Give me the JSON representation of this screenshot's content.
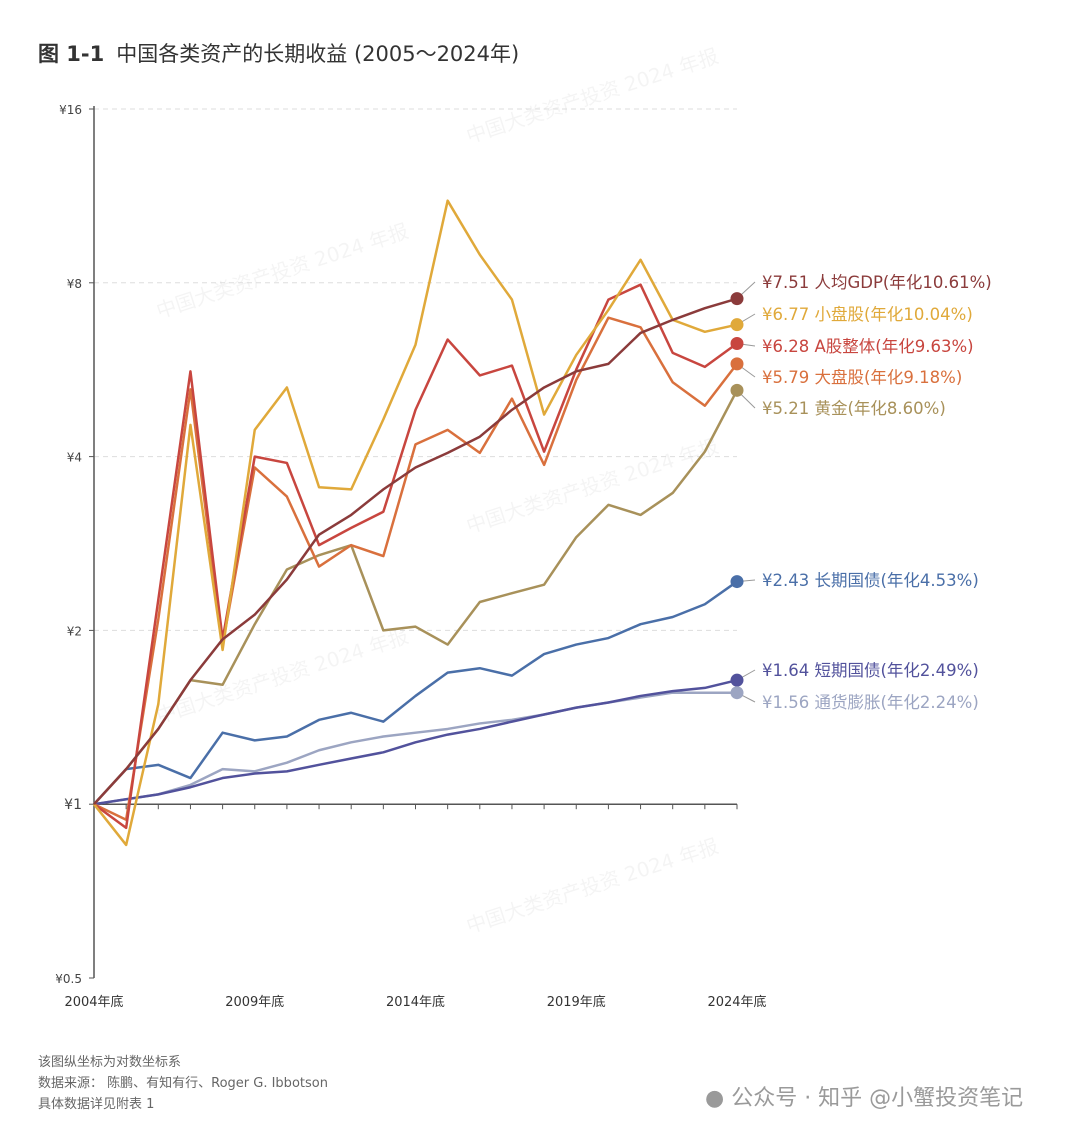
{
  "chart_data": {
    "type": "line",
    "title_number": "图 1-1",
    "title": "中国各类资产的长期收益 (2005～2024年)",
    "xlabel": "",
    "ylabel": "",
    "y_scale": "log2",
    "ylim": [
      0.5,
      16
    ],
    "y_ticks": [
      {
        "value": 0.5,
        "label": "¥0.5"
      },
      {
        "value": 1,
        "label": "¥1"
      },
      {
        "value": 2,
        "label": "¥2"
      },
      {
        "value": 4,
        "label": "¥4"
      },
      {
        "value": 8,
        "label": "¥8"
      },
      {
        "value": 16,
        "label": "¥16"
      }
    ],
    "x": [
      2004,
      2005,
      2006,
      2007,
      2008,
      2009,
      2010,
      2011,
      2012,
      2013,
      2014,
      2015,
      2016,
      2017,
      2018,
      2019,
      2020,
      2021,
      2022,
      2023,
      2024
    ],
    "x_ticks": [
      {
        "value": 2004,
        "label": "2004年底"
      },
      {
        "value": 2009,
        "label": "2009年底"
      },
      {
        "value": 2014,
        "label": "2014年底"
      },
      {
        "value": 2019,
        "label": "2019年底"
      },
      {
        "value": 2024,
        "label": "2024年底"
      }
    ],
    "grid": "horizontal-dashed",
    "series": [
      {
        "name": "人均GDP",
        "color": "#8b3b3b",
        "end_label": "¥7.51 人均GDP(年化10.61%)",
        "values": [
          1,
          1.15,
          1.35,
          1.64,
          1.93,
          2.13,
          2.45,
          2.93,
          3.17,
          3.51,
          3.83,
          4.06,
          4.33,
          4.82,
          5.27,
          5.62,
          5.79,
          6.55,
          6.9,
          7.23,
          7.51
        ]
      },
      {
        "name": "小盘股",
        "color": "#e0a93a",
        "end_label": "¥6.77 小盘股(年化10.04%)",
        "values": [
          1,
          0.85,
          1.49,
          4.54,
          1.85,
          4.45,
          5.27,
          3.54,
          3.51,
          4.64,
          6.25,
          11.1,
          8.95,
          7.48,
          4.73,
          6.0,
          7.18,
          8.77,
          6.9,
          6.58,
          6.77
        ]
      },
      {
        "name": "A股整体",
        "color": "#c8463f",
        "end_label": "¥6.28 A股整体(年化9.63%)",
        "values": [
          1,
          0.91,
          2.26,
          5.62,
          1.93,
          4.0,
          3.9,
          2.81,
          3.01,
          3.21,
          4.82,
          6.38,
          5.53,
          5.75,
          4.08,
          5.66,
          7.48,
          7.94,
          6.05,
          5.72,
          6.28
        ]
      },
      {
        "name": "大盘股",
        "color": "#d9703d",
        "end_label": "¥5.79 大盘股(年化9.18%)",
        "values": [
          1,
          0.94,
          2.09,
          5.23,
          1.89,
          3.83,
          3.41,
          2.58,
          2.81,
          2.69,
          4.2,
          4.45,
          4.06,
          5.04,
          3.87,
          5.43,
          6.96,
          6.7,
          5.38,
          4.9,
          5.79
        ]
      },
      {
        "name": "黄金",
        "color": "#a8915a",
        "end_label": "¥5.21 黄金(年化8.60%)",
        "values": [
          1,
          1.15,
          1.35,
          1.64,
          1.61,
          2.05,
          2.55,
          2.7,
          2.81,
          2.0,
          2.03,
          1.89,
          2.24,
          2.32,
          2.4,
          2.9,
          3.3,
          3.17,
          3.46,
          4.08,
          5.21
        ]
      },
      {
        "name": "长期国债",
        "color": "#4a6fa8",
        "end_label": "¥2.43 长期国债(年化4.53%)",
        "values": [
          1,
          1.15,
          1.17,
          1.11,
          1.33,
          1.29,
          1.31,
          1.4,
          1.44,
          1.39,
          1.54,
          1.69,
          1.72,
          1.67,
          1.82,
          1.89,
          1.94,
          2.05,
          2.11,
          2.22,
          2.43
        ]
      },
      {
        "name": "短期国债",
        "color": "#52529c",
        "end_label": "¥1.64 短期国债(年化2.49%)",
        "values": [
          1,
          1.02,
          1.04,
          1.07,
          1.11,
          1.13,
          1.14,
          1.17,
          1.2,
          1.23,
          1.28,
          1.32,
          1.35,
          1.39,
          1.43,
          1.47,
          1.5,
          1.54,
          1.57,
          1.59,
          1.64
        ]
      },
      {
        "name": "通货膨胀",
        "color": "#9ca5c2",
        "end_label": "¥1.56 通货膨胀(年化2.24%)",
        "values": [
          1,
          1.02,
          1.04,
          1.08,
          1.15,
          1.14,
          1.18,
          1.24,
          1.28,
          1.31,
          1.33,
          1.35,
          1.38,
          1.4,
          1.43,
          1.47,
          1.5,
          1.53,
          1.56,
          1.56,
          1.56
        ]
      }
    ]
  },
  "notes": [
    "该图纵坐标为对数坐标系",
    "数据来源： 陈鹏、有知有行、Roger G. Ibbotson",
    "具体数据详见附表 1"
  ],
  "watermark": "中国大类资产投资 2024 年报",
  "source_mark": "公众号 · 知乎 @小蟹投资笔记"
}
